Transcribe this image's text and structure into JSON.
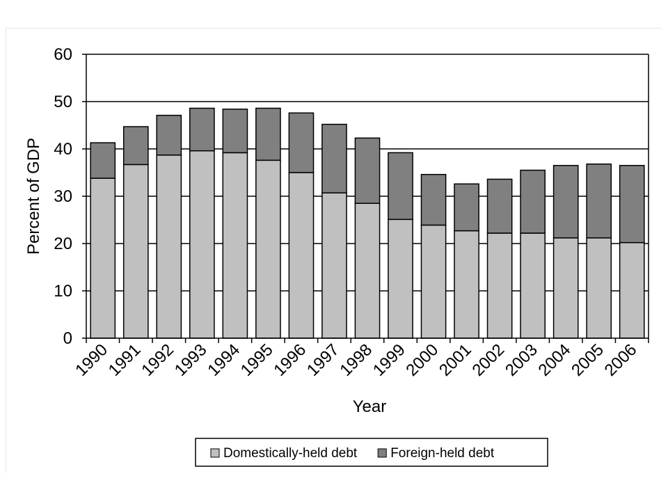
{
  "chart_data": {
    "type": "bar",
    "stacked": true,
    "categories": [
      "1990",
      "1991",
      "1992",
      "1993",
      "1994",
      "1995",
      "1996",
      "1997",
      "1998",
      "1999",
      "2000",
      "2001",
      "2002",
      "2003",
      "2004",
      "2005",
      "2006"
    ],
    "series": [
      {
        "name": "Domestically-held debt",
        "color": "#c0c0c0",
        "values": [
          33.8,
          36.7,
          38.7,
          39.6,
          39.2,
          37.6,
          35.0,
          30.7,
          28.5,
          25.1,
          23.9,
          22.7,
          22.2,
          22.2,
          21.2,
          21.2,
          20.2
        ]
      },
      {
        "name": "Foreign-held debt",
        "color": "#808080",
        "values": [
          7.5,
          8.0,
          8.4,
          9.0,
          9.2,
          11.0,
          12.6,
          14.5,
          13.8,
          14.1,
          10.7,
          9.9,
          11.4,
          13.3,
          15.3,
          15.6,
          16.3
        ]
      }
    ],
    "xlabel": "Year",
    "ylabel": "Percent of GDP",
    "ylim": [
      0,
      60
    ],
    "yticks": [
      "0",
      "10",
      "20",
      "30",
      "40",
      "50",
      "60"
    ],
    "grid": true,
    "legend_position": "bottom"
  }
}
